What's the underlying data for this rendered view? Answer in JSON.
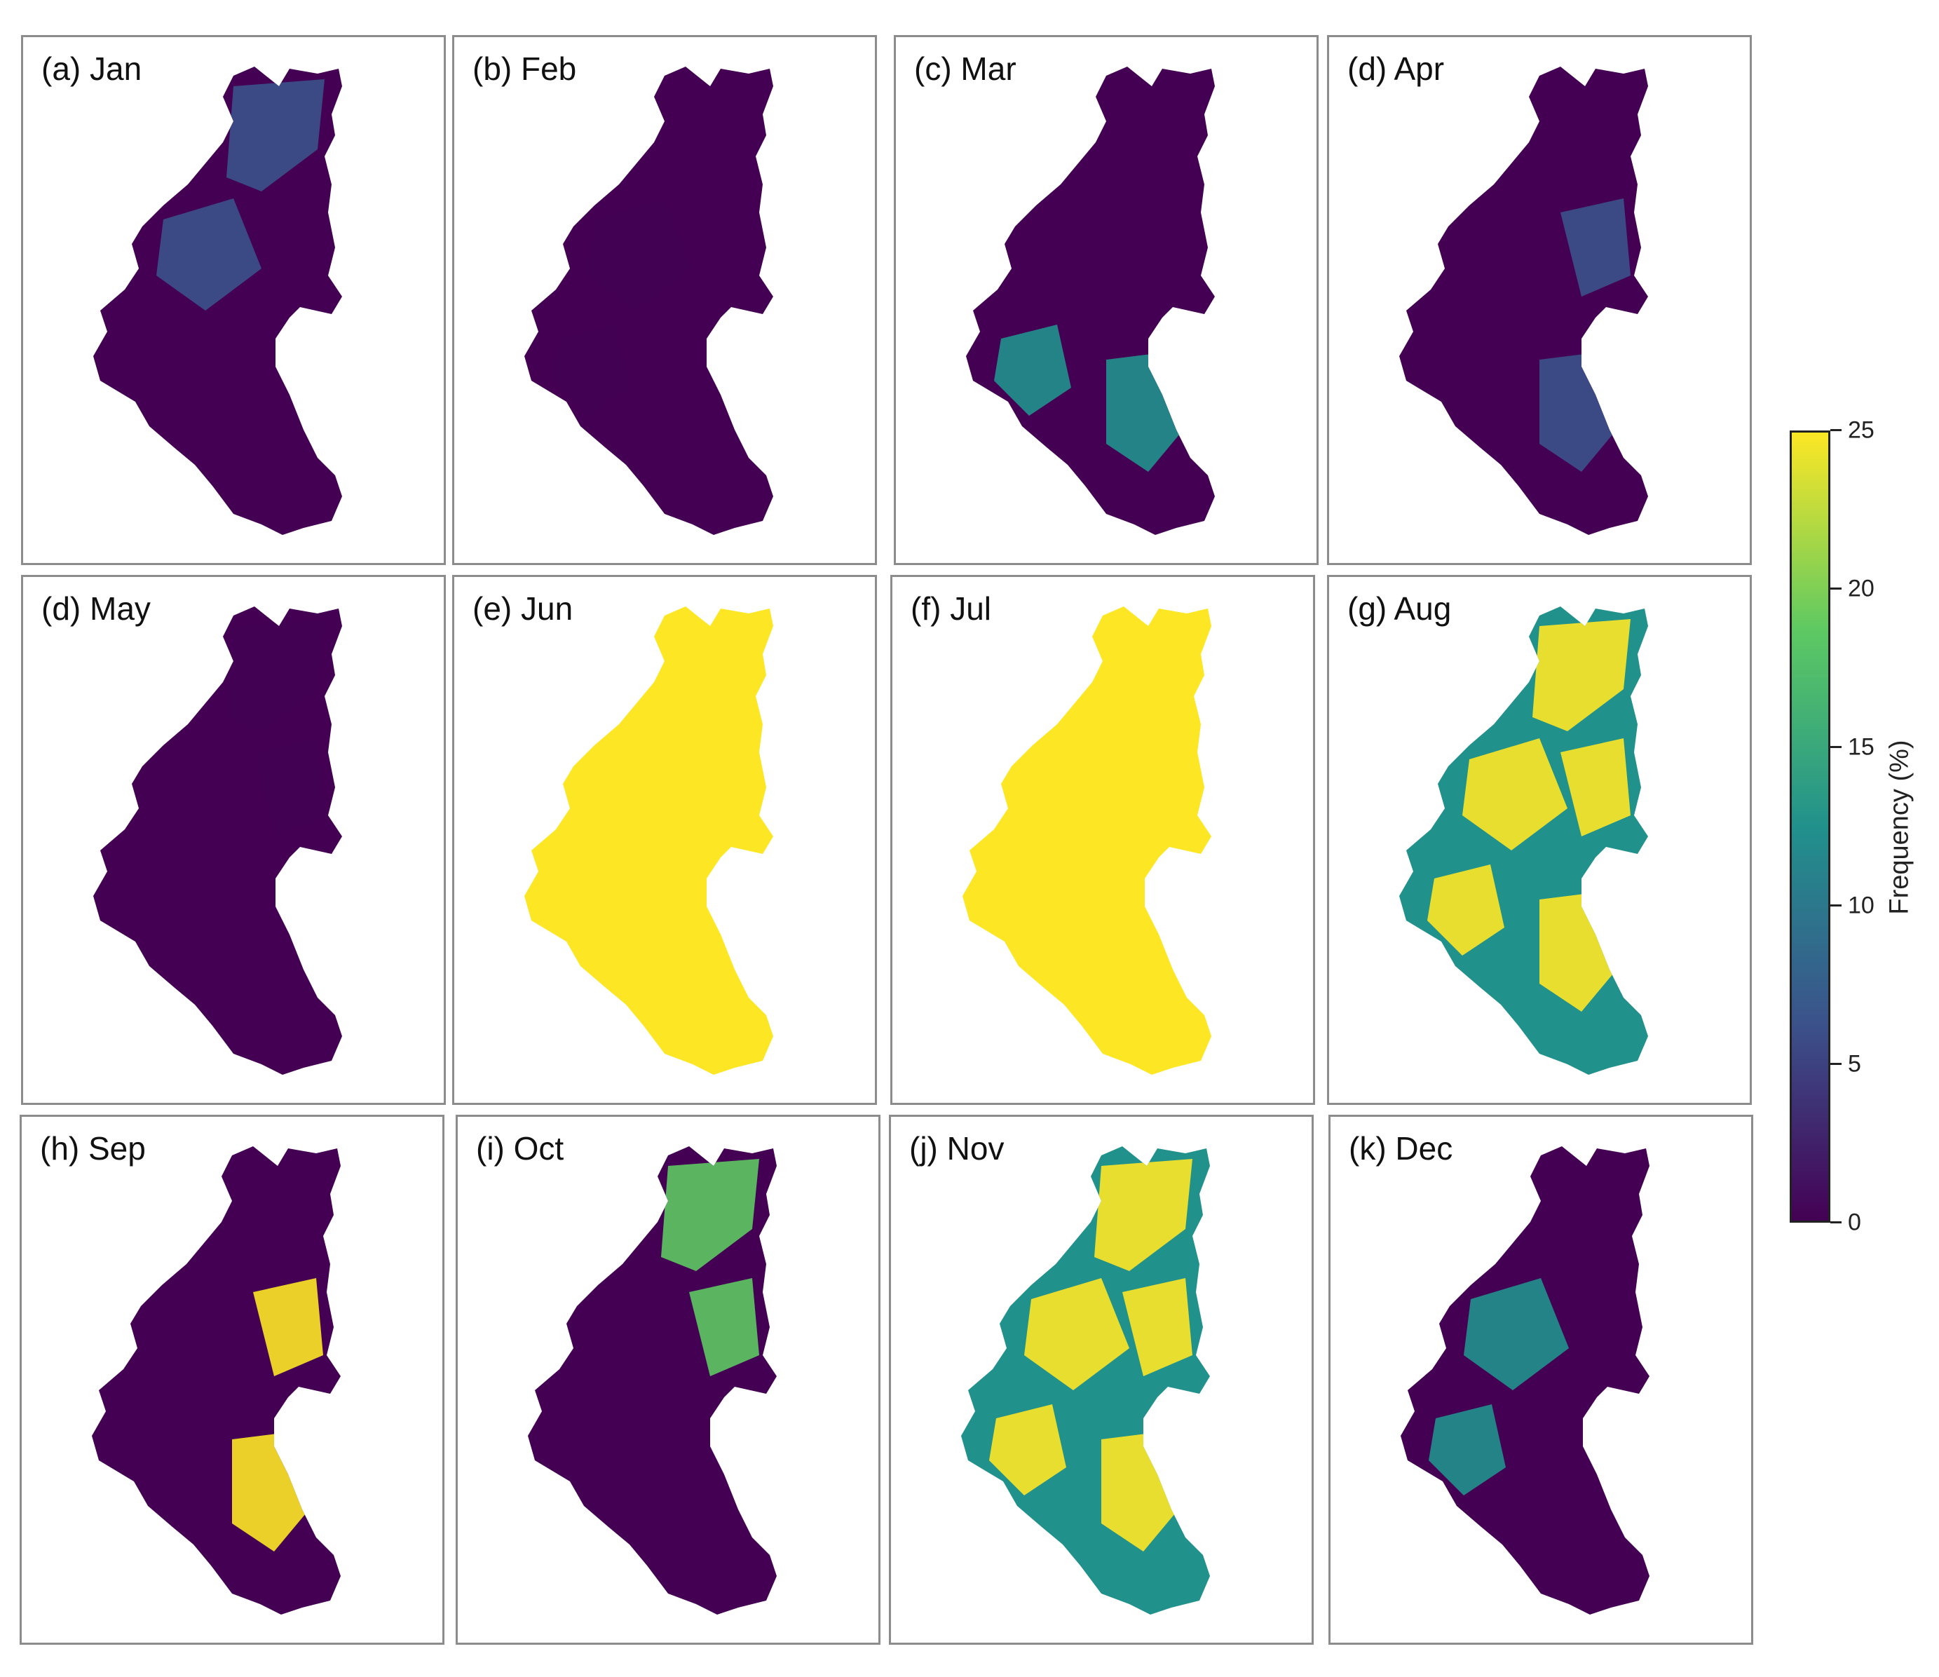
{
  "panels": [
    {
      "label": "(a) Jan",
      "dominant": "low",
      "highlight": "low-mid"
    },
    {
      "label": "(b) Feb",
      "dominant": "low",
      "highlight": "low"
    },
    {
      "label": "(c) Mar",
      "dominant": "low",
      "highlight": "mid"
    },
    {
      "label": "(d) Apr",
      "dominant": "low",
      "highlight": "low-mid"
    },
    {
      "label": "(d) May",
      "dominant": "low",
      "highlight": "low"
    },
    {
      "label": "(e) Jun",
      "dominant": "high",
      "highlight": "high"
    },
    {
      "label": "(f) Jul",
      "dominant": "high",
      "highlight": "high"
    },
    {
      "label": "(g) Aug",
      "dominant": "mid",
      "highlight": "high"
    },
    {
      "label": "(h) Sep",
      "dominant": "low",
      "highlight": "high"
    },
    {
      "label": "(i) Oct",
      "dominant": "low",
      "highlight": "mid-high"
    },
    {
      "label": "(j) Nov",
      "dominant": "mid",
      "highlight": "high"
    },
    {
      "label": "(k) Dec",
      "dominant": "low",
      "highlight": "mid"
    }
  ],
  "colorbar": {
    "label": "Frequency (%)",
    "min": 0,
    "max": 25,
    "ticks": [
      "0",
      "5",
      "10",
      "15",
      "20",
      "25"
    ],
    "colormap": "viridis",
    "colors": [
      "#440154",
      "#3b528b",
      "#21918c",
      "#5ec962",
      "#fde725"
    ]
  }
}
